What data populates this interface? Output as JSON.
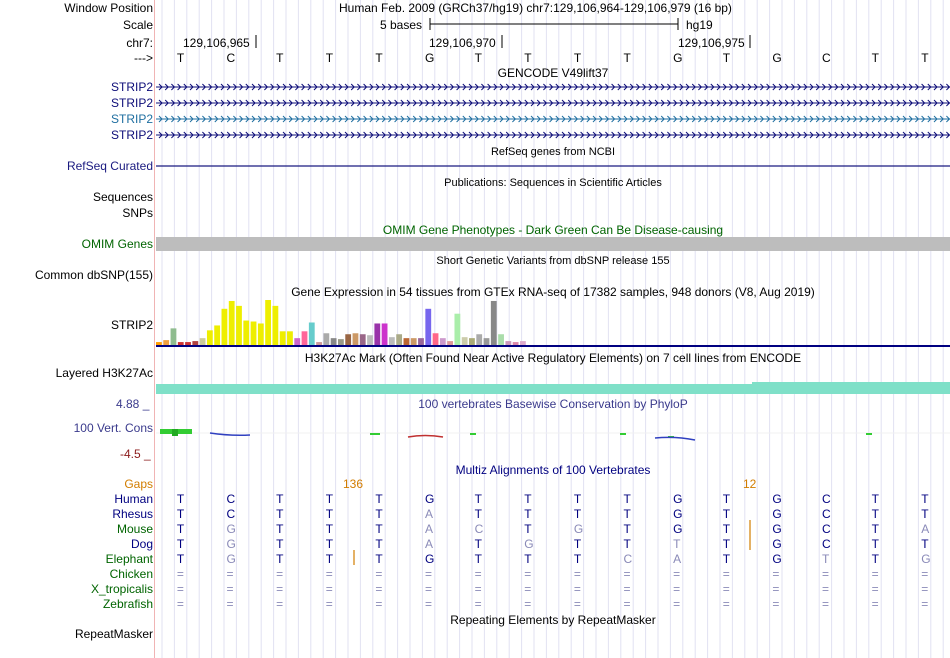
{
  "header": {
    "window_position_label": "Window Position",
    "window_position_value": "Human Feb. 2009 (GRCh37/hg19)   chr7:129,106,964-129,106,979 (16 bp)",
    "scale_label": "Scale",
    "scale_text": "5 bases",
    "scale_assembly": "hg19",
    "chrom_label": "chr7:",
    "strand_label": "--->",
    "positions": [
      "129,106,965",
      "129,106,970",
      "129,106,975"
    ],
    "bases": [
      "T",
      "C",
      "T",
      "T",
      "T",
      "G",
      "T",
      "T",
      "T",
      "T",
      "G",
      "T",
      "G",
      "C",
      "T",
      "T"
    ]
  },
  "gencode": {
    "title": "GENCODE V49lift37",
    "tracks": [
      {
        "label": "STRIP2",
        "color": "#0c0c78"
      },
      {
        "label": "STRIP2",
        "color": "#0c0c78"
      },
      {
        "label": "STRIP2",
        "color": "#1e6ea0"
      },
      {
        "label": "STRIP2",
        "color": "#0c0c78"
      }
    ]
  },
  "refseq": {
    "title": "RefSeq genes from NCBI",
    "label": "RefSeq Curated"
  },
  "publications": {
    "title": "Publications: Sequences in Scientific Articles",
    "label1": "Sequences",
    "label2": "SNPs"
  },
  "omim": {
    "title": "OMIM Gene Phenotypes - Dark Green Can Be Disease-causing",
    "label": "OMIM Genes"
  },
  "dbsnp": {
    "title": "Short Genetic Variants from dbSNP release 155",
    "label": "Common dbSNP(155)"
  },
  "gtex": {
    "title": "Gene Expression in 54 tissues from GTEx RNA-seq of 17382 samples, 948 donors (V8, Aug 2019)",
    "label": "STRIP2",
    "bars": [
      {
        "v": 3,
        "c": "#ff9d00"
      },
      {
        "v": 5,
        "c": "#f0a040"
      },
      {
        "v": 17,
        "c": "#8fbc8f"
      },
      {
        "v": 3,
        "c": "#cc3333"
      },
      {
        "v": 3,
        "c": "#cc3333"
      },
      {
        "v": 4,
        "c": "#b04040"
      },
      {
        "v": 7,
        "c": "#cccc99"
      },
      {
        "v": 15,
        "c": "#eeee00"
      },
      {
        "v": 20,
        "c": "#eeee00"
      },
      {
        "v": 37,
        "c": "#eeee00"
      },
      {
        "v": 45,
        "c": "#eeee00"
      },
      {
        "v": 40,
        "c": "#eeee00"
      },
      {
        "v": 25,
        "c": "#eeee00"
      },
      {
        "v": 24,
        "c": "#eeee00"
      },
      {
        "v": 22,
        "c": "#eeee00"
      },
      {
        "v": 46,
        "c": "#eeee00"
      },
      {
        "v": 40,
        "c": "#eeee00"
      },
      {
        "v": 14,
        "c": "#eeee00"
      },
      {
        "v": 14,
        "c": "#eeee00"
      },
      {
        "v": 7,
        "c": "#cc66cc"
      },
      {
        "v": 14,
        "c": "#ff6699"
      },
      {
        "v": 23,
        "c": "#66cccc"
      },
      {
        "v": 3,
        "c": "#cc9999"
      },
      {
        "v": 12,
        "c": "#aaaaaa"
      },
      {
        "v": 7,
        "c": "#888888"
      },
      {
        "v": 6,
        "c": "#999988"
      },
      {
        "v": 11,
        "c": "#996644"
      },
      {
        "v": 12,
        "c": "#cc9966"
      },
      {
        "v": 11,
        "c": "#996688"
      },
      {
        "v": 10,
        "c": "#bbbbbb"
      },
      {
        "v": 22,
        "c": "#9933aa"
      },
      {
        "v": 22,
        "c": "#cc33cc"
      },
      {
        "v": 8,
        "c": "#bbbbbb"
      },
      {
        "v": 11,
        "c": "#aaaa88"
      },
      {
        "v": 7,
        "c": "#bb6633"
      },
      {
        "v": 7,
        "c": "#cc9966"
      },
      {
        "v": 7,
        "c": "#996699"
      },
      {
        "v": 37,
        "c": "#7766ee"
      },
      {
        "v": 12,
        "c": "#ff6688"
      },
      {
        "v": 7,
        "c": "#cc99cc"
      },
      {
        "v": 4,
        "c": "#dd9999"
      },
      {
        "v": 32,
        "c": "#aaeeaa"
      },
      {
        "v": 8,
        "c": "#ccccaa"
      },
      {
        "v": 7,
        "c": "#aaaa77"
      },
      {
        "v": 11,
        "c": "#aaaaaa"
      },
      {
        "v": 7,
        "c": "#999999"
      },
      {
        "v": 45,
        "c": "#888888"
      },
      {
        "v": 11,
        "c": "#aaddaa"
      },
      {
        "v": 4,
        "c": "#cc99bb"
      },
      {
        "v": 3,
        "c": "#dd88aa"
      },
      {
        "v": 4,
        "c": "#ddaacc"
      }
    ]
  },
  "h3k27ac": {
    "title": "H3K27Ac Mark (Often Found Near Active Regulatory Elements) on 7 cell lines from ENCODE",
    "label": "Layered H3K27Ac",
    "color": "#7fe0c8"
  },
  "phylop": {
    "title": "100 vertebrates Basewise Conservation by PhyloP",
    "label": "100 Vert. Cons",
    "max": "4.88 _",
    "min": "-4.5 _"
  },
  "multiz": {
    "title": "Multiz Alignments of 100 Vertebrates",
    "gaps_label": "Gaps",
    "gap1": "136",
    "gap2": "12",
    "species": [
      {
        "name": "Human",
        "color": "#000080",
        "seq": [
          "T",
          "C",
          "T",
          "T",
          "T",
          "G",
          "T",
          "T",
          "T",
          "T",
          "G",
          "T",
          "G",
          "C",
          "T",
          "T"
        ],
        "dim": []
      },
      {
        "name": "Rhesus",
        "color": "#000080",
        "seq": [
          "T",
          "C",
          "T",
          "T",
          "T",
          "A",
          "T",
          "T",
          "T",
          "T",
          "G",
          "T",
          "G",
          "C",
          "T",
          "T"
        ],
        "dim": [
          5
        ]
      },
      {
        "name": "Mouse",
        "color": "#006400",
        "seq": [
          "T",
          "G",
          "T",
          "T",
          "T",
          "A",
          "C",
          "T",
          "G",
          "T",
          "G",
          "T",
          "G",
          "C",
          "T",
          "A"
        ],
        "dim": [
          1,
          5,
          6,
          8,
          15
        ]
      },
      {
        "name": "Dog",
        "color": "#000080",
        "seq": [
          "T",
          "G",
          "T",
          "T",
          "T",
          "A",
          "T",
          "G",
          "T",
          "T",
          "T",
          "T",
          "G",
          "C",
          "T",
          "T"
        ],
        "dim": [
          1,
          5,
          7,
          10
        ]
      },
      {
        "name": "Elephant",
        "color": "#006400",
        "seq": [
          "T",
          "G",
          "T",
          "T",
          "T",
          "G",
          "T",
          "T",
          "T",
          "C",
          "A",
          "T",
          "G",
          "T",
          "T",
          "G"
        ],
        "dim": [
          1,
          9,
          10,
          13,
          15
        ]
      },
      {
        "name": "Chicken",
        "color": "#006400",
        "seq": [
          "=",
          "=",
          "=",
          "=",
          "=",
          "=",
          "=",
          "=",
          "=",
          "=",
          "=",
          "=",
          "=",
          "=",
          "=",
          "="
        ],
        "dim": []
      },
      {
        "name": "X_tropicalis",
        "color": "#006400",
        "seq": [
          "=",
          "=",
          "=",
          "=",
          "=",
          "=",
          "=",
          "=",
          "=",
          "=",
          "=",
          "=",
          "=",
          "=",
          "=",
          "="
        ],
        "dim": []
      },
      {
        "name": "Zebrafish",
        "color": "#006400",
        "seq": [
          "=",
          "=",
          "=",
          "=",
          "=",
          "=",
          "=",
          "=",
          "=",
          "=",
          "=",
          "=",
          "=",
          "=",
          "=",
          "="
        ],
        "dim": []
      }
    ]
  },
  "repeatmasker": {
    "title": "Repeating Elements by RepeatMasker",
    "label": "RepeatMasker"
  }
}
